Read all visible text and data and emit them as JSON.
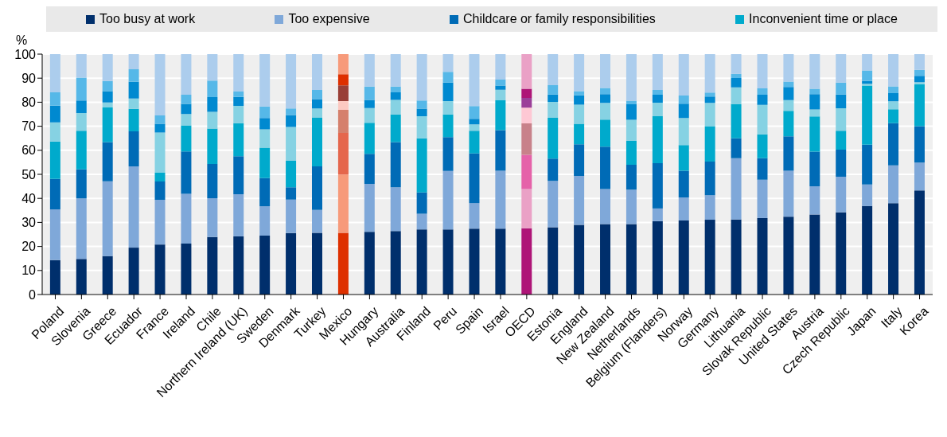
{
  "chart_data": {
    "type": "bar",
    "stacked": true,
    "ylabel": "%",
    "ylim": [
      0,
      100
    ],
    "yticks": [
      0,
      10,
      20,
      30,
      40,
      50,
      60,
      70,
      80,
      90,
      100
    ],
    "grid": "y",
    "legend": "top",
    "categories": [
      "Poland",
      "Slovenia",
      "Greece",
      "Ecuador",
      "France",
      "Ireland",
      "Chile",
      "Northern Ireland (UK)",
      "Sweden",
      "Denmark",
      "Turkey",
      "Mexico",
      "Hungary",
      "Australia",
      "Finland",
      "Peru",
      "Spain",
      "Israel",
      "OECD",
      "Estonia",
      "England",
      "New Zealand",
      "Netherlands",
      "Belgium (Flanders)",
      "Norway",
      "Germany",
      "Lithuania",
      "Slovak Republic",
      "United States",
      "Austria",
      "Czech Republic",
      "Japan",
      "Italy",
      "Korea"
    ],
    "series": [
      {
        "name": "Too busy at work",
        "color": "#002f6c",
        "colors": [
          "#002f6c",
          "#002f6c",
          "#002f6c",
          "#002f6c",
          "#002f6c",
          "#002f6c",
          "#002f6c",
          "#002f6c",
          "#002f6c",
          "#002f6c",
          "#002f6c",
          "#de3000",
          "#002f6c",
          "#002f6c",
          "#002f6c",
          "#002f6c",
          "#002f6c",
          "#002f6c",
          "#ae1577",
          "#002f6c",
          "#002f6c",
          "#002f6c",
          "#002f6c",
          "#002f6c",
          "#002f6c",
          "#002f6c",
          "#002f6c",
          "#002f6c",
          "#002f6c",
          "#002f6c",
          "#002f6c",
          "#002f6c",
          "#002f6c",
          "#002f6c"
        ],
        "values": [
          14.3,
          14.8,
          16.0,
          19.5,
          20.8,
          21.2,
          23.9,
          24.2,
          24.5,
          25.6,
          25.7,
          25.7,
          26.1,
          26.4,
          27.1,
          27.1,
          27.4,
          27.4,
          27.6,
          28.0,
          29.0,
          29.3,
          29.3,
          30.5,
          30.8,
          31.1,
          31.2,
          31.8,
          32.4,
          33.3,
          34.2,
          36.8,
          38.0,
          43.3
        ]
      },
      {
        "name": "Too expensive",
        "color": "#7fa8d9",
        "colors": [
          "#7fa8d9",
          "#7fa8d9",
          "#7fa8d9",
          "#7fa8d9",
          "#7fa8d9",
          "#7fa8d9",
          "#7fa8d9",
          "#7fa8d9",
          "#7fa8d9",
          "#7fa8d9",
          "#7fa8d9",
          "#f79a7a",
          "#7fa8d9",
          "#7fa8d9",
          "#7fa8d9",
          "#7fa8d9",
          "#7fa8d9",
          "#7fa8d9",
          "#eaa1c6",
          "#7fa8d9",
          "#7fa8d9",
          "#7fa8d9",
          "#7fa8d9",
          "#7fa8d9",
          "#7fa8d9",
          "#7fa8d9",
          "#7fa8d9",
          "#7fa8d9",
          "#7fa8d9",
          "#7fa8d9",
          "#7fa8d9",
          "#7fa8d9",
          "#7fa8d9",
          "#7fa8d9"
        ],
        "values": [
          21.1,
          25.2,
          31.1,
          33.8,
          18.6,
          20.7,
          16.2,
          17.5,
          12.2,
          13.9,
          9.5,
          24.2,
          19.9,
          18.2,
          6.5,
          24.3,
          10.6,
          24.1,
          16.3,
          19.3,
          20.3,
          14.6,
          14.3,
          5.3,
          9.6,
          10.2,
          25.5,
          16.0,
          19.1,
          11.7,
          14.8,
          9.0,
          15.7,
          11.6
        ]
      },
      {
        "name": "Childcare or family responsibilities",
        "color": "#006bb6",
        "colors": [
          "#006bb6",
          "#006bb6",
          "#006bb6",
          "#006bb6",
          "#006bb6",
          "#006bb6",
          "#006bb6",
          "#006bb6",
          "#006bb6",
          "#006bb6",
          "#006bb6",
          "#e5664c",
          "#006bb6",
          "#006bb6",
          "#006bb6",
          "#006bb6",
          "#006bb6",
          "#006bb6",
          "#e562a9",
          "#006bb6",
          "#006bb6",
          "#006bb6",
          "#006bb6",
          "#006bb6",
          "#006bb6",
          "#006bb6",
          "#006bb6",
          "#006bb6",
          "#006bb6",
          "#006bb6",
          "#006bb6",
          "#006bb6",
          "#006bb6",
          "#006bb6"
        ],
        "values": [
          12.7,
          12.1,
          16.3,
          14.6,
          7.6,
          17.6,
          14.2,
          15.8,
          11.7,
          5.1,
          18.1,
          17.3,
          12.5,
          18.8,
          8.9,
          14.1,
          20.7,
          16.9,
          14.2,
          9.2,
          13.2,
          17.6,
          10.4,
          18.8,
          11.1,
          14.0,
          8.3,
          8.9,
          14.3,
          14.4,
          11.3,
          16.5,
          17.6,
          15.1
        ]
      },
      {
        "name": "Inconvenient time or place",
        "color": "#00aacc",
        "colors": [
          "#00aacc",
          "#00aacc",
          "#00aacc",
          "#00aacc",
          "#00aacc",
          "#00aacc",
          "#00aacc",
          "#00aacc",
          "#00aacc",
          "#00aacc",
          "#00aacc",
          "#d5806c",
          "#00aacc",
          "#00aacc",
          "#00aacc",
          "#00aacc",
          "#00aacc",
          "#00aacc",
          "#c8818a",
          "#00aacc",
          "#00aacc",
          "#00aacc",
          "#00aacc",
          "#00aacc",
          "#00aacc",
          "#00aacc",
          "#00aacc",
          "#00aacc",
          "#00aacc",
          "#00aacc",
          "#00aacc",
          "#00aacc",
          "#00aacc",
          "#00aacc"
        ],
        "values": [
          15.6,
          16.0,
          14.4,
          9.3,
          3.7,
          10.9,
          14.7,
          13.8,
          12.7,
          11.0,
          20.4,
          9.6,
          12.9,
          11.5,
          22.5,
          9.4,
          9.4,
          12.4,
          13.1,
          17.0,
          8.5,
          11.3,
          9.9,
          19.6,
          10.7,
          14.7,
          14.1,
          9.9,
          10.6,
          14.7,
          7.8,
          24.6,
          5.8,
          17.5
        ]
      },
      {
        "color": "#86d2e3",
        "colors": [
          "#86d2e3",
          "#86d2e3",
          "#86d2e3",
          "#86d2e3",
          "#86d2e3",
          "#86d2e3",
          "#86d2e3",
          "#86d2e3",
          "#86d2e3",
          "#86d2e3",
          "#86d2e3",
          "#fcc9c1",
          "#86d2e3",
          "#86d2e3",
          "#86d2e3",
          "#86d2e3",
          "#86d2e3",
          "#86d2e3",
          "#fec8d4",
          "#86d2e3",
          "#86d2e3",
          "#86d2e3",
          "#86d2e3",
          "#86d2e3",
          "#86d2e3",
          "#86d2e3",
          "#86d2e3",
          "#86d2e3",
          "#86d2e3",
          "#86d2e3",
          "#86d2e3",
          "#86d2e3",
          "#86d2e3",
          "#86d2e3"
        ],
        "values": [
          7.9,
          7.4,
          2.1,
          4.3,
          16.7,
          4.7,
          7.0,
          7.2,
          7.6,
          14.1,
          3.7,
          3.7,
          6.2,
          6.1,
          9.2,
          5.6,
          2.7,
          4.4,
          6.5,
          6.6,
          8.0,
          6.9,
          8.8,
          5.6,
          11.2,
          9.7,
          7.1,
          12.3,
          4.5,
          2.9,
          9.4,
          0.8,
          3.3,
          0.8
        ]
      },
      {
        "color": "#0089d0",
        "colors": [
          "#0089d0",
          "#0089d0",
          "#0089d0",
          "#0089d0",
          "#0089d0",
          "#0089d0",
          "#0089d0",
          "#0089d0",
          "#0089d0",
          "#0089d0",
          "#0089d0",
          "#993f37",
          "#0089d0",
          "#0089d0",
          "#0089d0",
          "#0089d0",
          "#0089d0",
          "#0089d0",
          "#9b3f99",
          "#0089d0",
          "#0089d0",
          "#0089d0",
          "#0089d0",
          "#0089d0",
          "#0089d0",
          "#0089d0",
          "#0089d0",
          "#0089d0",
          "#0089d0",
          "#0089d0",
          "#0089d0",
          "#0089d0",
          "#0089d0",
          "#0089d0"
        ],
        "values": [
          7.0,
          5.2,
          4.7,
          7.0,
          3.6,
          4.2,
          6.1,
          3.7,
          4.7,
          5.0,
          3.9,
          6.5,
          3.4,
          3.1,
          3.1,
          7.7,
          2.3,
          1.7,
          4.1,
          3.1,
          3.9,
          3.7,
          6.4,
          3.3,
          6.0,
          2.7,
          3.9,
          4.2,
          5.4,
          6.4,
          5.7,
          1.1,
          3.4,
          2.7
        ]
      },
      {
        "color": "#56b8e8",
        "colors": [
          "#56b8e8",
          "#56b8e8",
          "#56b8e8",
          "#56b8e8",
          "#56b8e8",
          "#56b8e8",
          "#56b8e8",
          "#56b8e8",
          "#56b8e8",
          "#56b8e8",
          "#56b8e8",
          "#de3000",
          "#56b8e8",
          "#56b8e8",
          "#56b8e8",
          "#56b8e8",
          "#56b8e8",
          "#56b8e8",
          "#ae1577",
          "#56b8e8",
          "#56b8e8",
          "#56b8e8",
          "#56b8e8",
          "#56b8e8",
          "#56b8e8",
          "#56b8e8",
          "#56b8e8",
          "#56b8e8",
          "#56b8e8",
          "#56b8e8",
          "#56b8e8",
          "#56b8e8",
          "#56b8e8",
          "#56b8e8"
        ],
        "values": [
          5.5,
          9.5,
          4.2,
          5.2,
          3.5,
          3.8,
          6.9,
          2.2,
          4.8,
          2.7,
          3.8,
          4.6,
          5.5,
          2.4,
          3.4,
          4.4,
          5.3,
          2.5,
          3.8,
          3.9,
          1.7,
          2.5,
          1.5,
          2.0,
          3.4,
          1.6,
          1.7,
          2.7,
          2.3,
          2.2,
          5.0,
          4.4,
          2.8,
          2.5
        ]
      },
      {
        "color": "#accded",
        "colors": [
          "#accded",
          "#accded",
          "#accded",
          "#accded",
          "#accded",
          "#accded",
          "#accded",
          "#accded",
          "#accded",
          "#accded",
          "#accded",
          "#f79a7a",
          "#accded",
          "#accded",
          "#accded",
          "#accded",
          "#accded",
          "#accded",
          "#eaa1c6",
          "#accded",
          "#accded",
          "#accded",
          "#accded",
          "#accded",
          "#accded",
          "#accded",
          "#accded",
          "#accded",
          "#accded",
          "#accded",
          "#accded",
          "#accded",
          "#accded",
          "#accded"
        ],
        "values": [
          15.9,
          9.8,
          11.2,
          6.3,
          25.5,
          16.9,
          11.0,
          15.6,
          21.8,
          22.6,
          14.9,
          8.4,
          13.5,
          13.5,
          19.3,
          7.4,
          21.6,
          10.6,
          14.4,
          12.9,
          15.4,
          14.1,
          19.4,
          14.9,
          17.2,
          16.0,
          8.2,
          14.2,
          11.4,
          14.4,
          11.8,
          6.8,
          13.4,
          6.5
        ]
      }
    ]
  }
}
